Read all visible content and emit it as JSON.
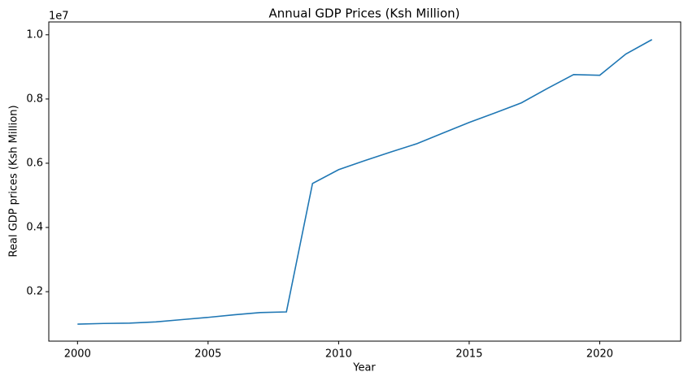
{
  "chart_data": {
    "type": "line",
    "title": "Annual GDP Prices (Ksh Million)",
    "x_label": "Year",
    "y_label": "Real GDP prices (Ksh Million)",
    "y_offset_label": "1e7",
    "x": [
      2000,
      2001,
      2002,
      2003,
      2004,
      2005,
      2006,
      2007,
      2008,
      2009,
      2010,
      2011,
      2012,
      2013,
      2014,
      2015,
      2016,
      2017,
      2018,
      2019,
      2020,
      2021,
      2022
    ],
    "series": [
      {
        "color": "#1f77b4",
        "values": [
          0.099,
          0.101,
          0.102,
          0.106,
          0.113,
          0.12,
          0.128,
          0.135,
          0.137,
          0.537,
          0.58,
          0.608,
          0.635,
          0.661,
          0.694,
          0.727,
          0.757,
          0.788,
          0.833,
          0.876,
          0.874,
          0.94,
          0.985
        ]
      }
    ],
    "xlim": [
      1998.9,
      2023.1
    ],
    "xticks": [
      2000,
      2005,
      2010,
      2015,
      2020
    ],
    "ylim": [
      0.046,
      1.04
    ],
    "yticks": [
      0.2,
      0.4,
      0.6,
      0.8,
      {
        "value": 1,
        "label": "1.0"
      }
    ],
    "grid": false
  }
}
